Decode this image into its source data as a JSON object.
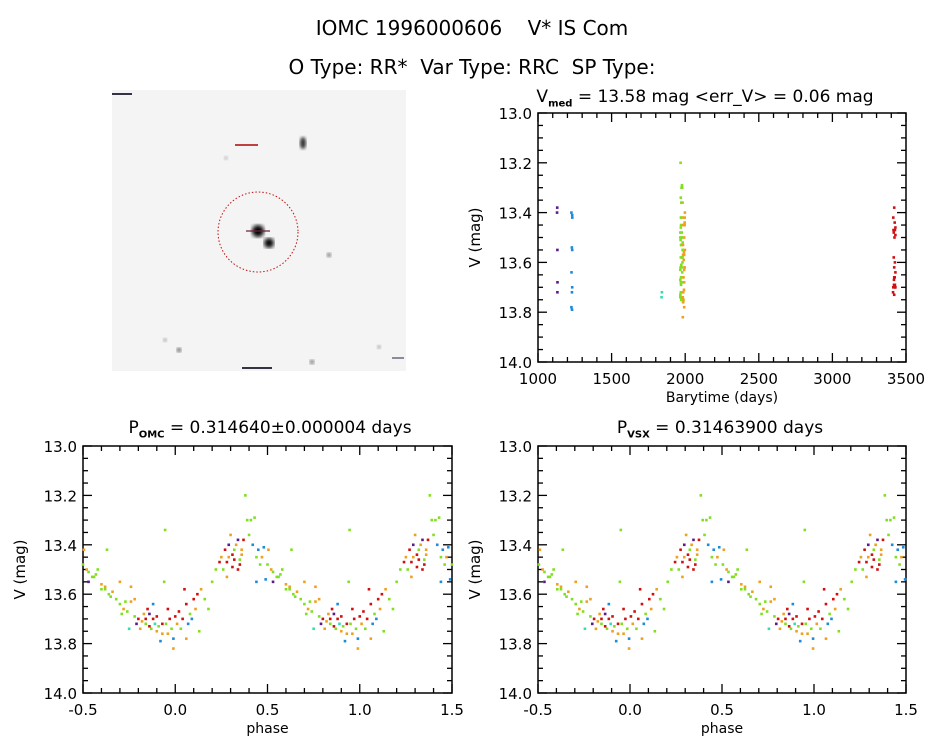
{
  "header": {
    "title": "IOMC 1996000606    V* IS Com",
    "subtitle": "O Type: RR*  Var Type: RRC  SP Type:"
  },
  "colors": [
    "#5a1a8a",
    "#1e8ad8",
    "#30e0b0",
    "#80e020",
    "#f0a020",
    "#d01010"
  ],
  "chart_data": [
    {
      "type": "scatter",
      "id": "timeseries",
      "title_main": "V",
      "title_sub": "med",
      "title_rest": " = 13.58 mag <err_V> = 0.06 mag",
      "xlabel": "Barytime (days)",
      "ylabel": "V (mag)",
      "xlim": [
        1000,
        3500
      ],
      "ylim": [
        14.0,
        13.0
      ],
      "xticks": [
        "1000",
        "1500",
        "2000",
        "2500",
        "3000",
        "3500"
      ],
      "yticks": [
        "13.0",
        "13.2",
        "13.4",
        "13.6",
        "13.8",
        "14.0"
      ],
      "group_times": [
        1130,
        1230,
        1840,
        1975,
        1990,
        3420
      ]
    },
    {
      "type": "scatter",
      "id": "phase-omc",
      "title_main": "P",
      "title_sub": "OMC",
      "title_rest": " = 0.314640±0.000004 days",
      "xlabel": "phase",
      "ylabel": "V (mag)",
      "xlim": [
        -0.5,
        1.5
      ],
      "ylim": [
        14.0,
        13.0
      ],
      "xticks": [
        "-0.5",
        "0.0",
        "0.5",
        "1.0",
        "1.5"
      ],
      "yticks": [
        "13.0",
        "13.2",
        "13.4",
        "13.6",
        "13.8",
        "14.0"
      ],
      "phase_shift": 0
    },
    {
      "type": "scatter",
      "id": "phase-vsx",
      "title_main": "P",
      "title_sub": "VSX",
      "title_rest": " = 0.31463900 days",
      "xlabel": "phase",
      "ylabel": "V (mag)",
      "xlim": [
        -0.5,
        1.5
      ],
      "ylim": [
        14.0,
        13.0
      ],
      "xticks": [
        "-0.5",
        "0.0",
        "0.5",
        "1.0",
        "1.5"
      ],
      "yticks": [
        "13.0",
        "13.2",
        "13.4",
        "13.6",
        "13.8",
        "14.0"
      ],
      "phase_shift": 0.005
    }
  ],
  "points": [
    [
      0.5,
      13.48,
      3
    ],
    [
      0.52,
      13.5,
      4
    ],
    [
      0.55,
      13.53,
      3
    ],
    [
      0.57,
      13.52,
      3
    ],
    [
      0.6,
      13.56,
      4
    ],
    [
      0.62,
      13.58,
      3
    ],
    [
      0.64,
      13.6,
      3
    ],
    [
      0.66,
      13.59,
      4
    ],
    [
      0.68,
      13.62,
      3
    ],
    [
      0.7,
      13.64,
      3
    ],
    [
      0.72,
      13.66,
      4
    ],
    [
      0.74,
      13.67,
      3
    ],
    [
      0.76,
      13.63,
      4
    ],
    [
      0.78,
      13.69,
      3
    ],
    [
      0.8,
      13.7,
      5
    ],
    [
      0.82,
      13.71,
      4
    ],
    [
      0.84,
      13.72,
      3
    ],
    [
      0.86,
      13.68,
      0
    ],
    [
      0.87,
      13.74,
      3
    ],
    [
      0.88,
      13.7,
      5
    ],
    [
      0.89,
      13.72,
      2
    ],
    [
      0.9,
      13.75,
      4
    ],
    [
      0.91,
      13.73,
      3
    ],
    [
      0.92,
      13.79,
      1
    ],
    [
      0.93,
      13.76,
      4
    ],
    [
      0.94,
      13.55,
      3
    ],
    [
      0.95,
      13.72,
      3
    ],
    [
      0.96,
      13.76,
      4
    ],
    [
      0.97,
      13.7,
      5
    ],
    [
      0.98,
      13.74,
      3
    ],
    [
      0.99,
      13.82,
      4
    ],
    [
      0.0,
      13.69,
      5
    ],
    [
      0.02,
      13.67,
      5
    ],
    [
      0.03,
      13.74,
      3
    ],
    [
      0.04,
      13.7,
      5
    ],
    [
      0.05,
      13.58,
      5
    ],
    [
      0.06,
      13.64,
      5
    ],
    [
      0.07,
      13.72,
      1
    ],
    [
      0.08,
      13.68,
      3
    ],
    [
      0.09,
      13.7,
      1
    ],
    [
      0.1,
      13.62,
      5
    ],
    [
      0.11,
      13.66,
      4
    ],
    [
      0.12,
      13.6,
      5
    ],
    [
      0.13,
      13.75,
      3
    ],
    [
      0.14,
      13.58,
      4
    ],
    [
      0.16,
      13.62,
      3
    ],
    [
      0.18,
      13.66,
      3
    ],
    [
      0.2,
      13.55,
      3
    ],
    [
      0.22,
      13.5,
      3
    ],
    [
      0.24,
      13.47,
      5
    ],
    [
      0.25,
      13.45,
      4
    ],
    [
      0.26,
      13.5,
      3
    ],
    [
      0.27,
      13.42,
      5
    ],
    [
      0.28,
      13.47,
      5
    ],
    [
      0.29,
      13.4,
      0
    ],
    [
      0.3,
      13.36,
      4
    ],
    [
      0.31,
      13.44,
      5
    ],
    [
      0.32,
      13.42,
      3
    ],
    [
      0.33,
      13.4,
      4
    ],
    [
      0.34,
      13.38,
      0
    ],
    [
      0.35,
      13.46,
      3
    ],
    [
      0.36,
      13.42,
      4
    ],
    [
      0.37,
      13.38,
      5
    ],
    [
      0.38,
      13.2,
      3
    ],
    [
      0.39,
      13.3,
      3
    ],
    [
      0.4,
      13.36,
      3
    ],
    [
      0.42,
      13.4,
      1
    ],
    [
      0.43,
      13.29,
      3
    ],
    [
      0.44,
      13.45,
      3
    ],
    [
      0.45,
      13.42,
      1
    ],
    [
      0.46,
      13.48,
      3
    ],
    [
      0.47,
      13.45,
      4
    ],
    [
      0.48,
      13.41,
      1
    ],
    [
      0.49,
      13.54,
      1
    ],
    [
      0.505,
      13.42,
      4
    ],
    [
      0.53,
      13.55,
      0
    ],
    [
      0.56,
      13.53,
      3
    ],
    [
      0.58,
      13.5,
      3
    ],
    [
      0.62,
      13.57,
      4
    ],
    [
      0.63,
      13.42,
      3
    ],
    [
      0.7,
      13.55,
      4
    ],
    [
      0.71,
      13.68,
      3
    ],
    [
      0.76,
      13.57,
      4
    ],
    [
      0.78,
      13.62,
      4
    ],
    [
      0.85,
      13.66,
      5
    ],
    [
      0.88,
      13.64,
      1
    ],
    [
      0.6,
      13.58,
      3
    ],
    [
      0.65,
      13.61,
      3
    ],
    [
      0.73,
      13.63,
      3
    ],
    [
      0.83,
      13.68,
      4
    ],
    [
      0.35,
      13.48,
      5
    ],
    [
      0.31,
      13.49,
      5
    ],
    [
      0.29,
      13.45,
      4
    ],
    [
      0.945,
      13.34,
      3
    ],
    [
      0.44,
      13.55,
      1
    ],
    [
      0.86,
      13.73,
      5
    ],
    [
      0.81,
      13.74,
      4
    ],
    [
      0.84,
      13.7,
      5
    ],
    [
      0.9,
      13.69,
      5
    ],
    [
      0.93,
      13.72,
      5
    ],
    [
      0.96,
      13.66,
      5
    ],
    [
      0.01,
      13.72,
      4
    ],
    [
      0.32,
      13.46,
      5
    ],
    [
      0.34,
      13.5,
      5
    ],
    [
      0.28,
      13.53,
      4
    ],
    [
      0.36,
      13.44,
      4
    ],
    [
      0.41,
      13.3,
      3
    ],
    [
      0.53,
      13.51,
      3
    ],
    [
      0.79,
      13.72,
      0
    ],
    [
      0.75,
      13.74,
      2
    ],
    [
      0.99,
      13.78,
      1
    ],
    [
      0.06,
      13.78,
      4
    ]
  ]
}
